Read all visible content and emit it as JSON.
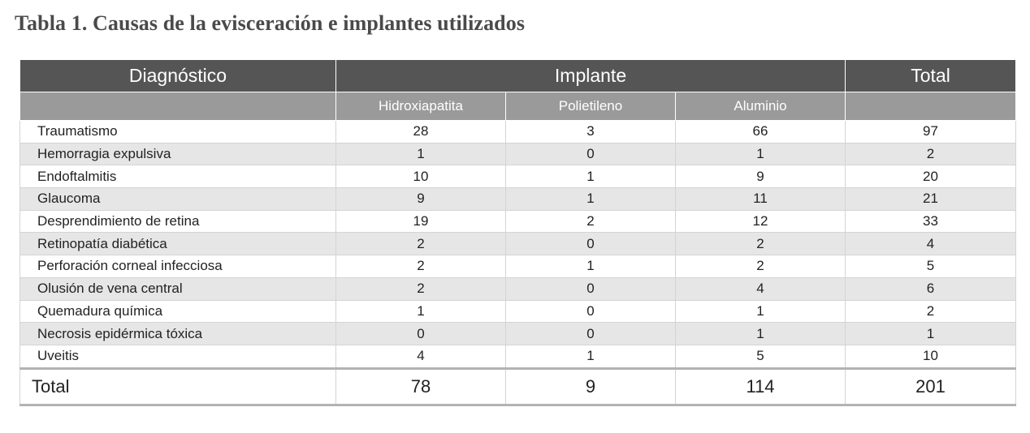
{
  "title": "Tabla 1. Causas de la evisceración e implantes utilizados",
  "headers": {
    "diagnostico": "Diagnóstico",
    "implante": "Implante",
    "total": "Total",
    "hidroxiapatita": "Hidroxiapatita",
    "polietileno": "Polietileno",
    "aluminio": "Aluminio"
  },
  "rows": [
    {
      "diag": "Traumatismo",
      "h": "28",
      "p": "3",
      "a": "66",
      "t": "97"
    },
    {
      "diag": "Hemorragia expulsiva",
      "h": "1",
      "p": "0",
      "a": "1",
      "t": "2"
    },
    {
      "diag": "Endoftalmitis",
      "h": "10",
      "p": "1",
      "a": "9",
      "t": "20"
    },
    {
      "diag": "Glaucoma",
      "h": "9",
      "p": "1",
      "a": "11",
      "t": "21"
    },
    {
      "diag": "Desprendimiento de retina",
      "h": "19",
      "p": "2",
      "a": "12",
      "t": "33"
    },
    {
      "diag": "Retinopatía diabética",
      "h": "2",
      "p": "0",
      "a": "2",
      "t": "4"
    },
    {
      "diag": "Perforación corneal infecciosa",
      "h": "2",
      "p": "1",
      "a": "2",
      "t": "5"
    },
    {
      "diag": "Olusión de vena central",
      "h": "2",
      "p": "0",
      "a": "4",
      "t": "6"
    },
    {
      "diag": "Quemadura química",
      "h": "1",
      "p": "0",
      "a": "1",
      "t": "2"
    },
    {
      "diag": "Necrosis epidérmica tóxica",
      "h": "0",
      "p": "0",
      "a": "1",
      "t": "1"
    },
    {
      "diag": "Uveitis",
      "h": "4",
      "p": "1",
      "a": "5",
      "t": "10"
    }
  ],
  "total": {
    "label": "Total",
    "h": "78",
    "p": "9",
    "a": "114",
    "t": "201"
  },
  "colors": {
    "header_dark": "#555555",
    "header_light": "#9a9a9a",
    "row_shade": "#e6e6e6",
    "title": "#4a4a4a"
  }
}
